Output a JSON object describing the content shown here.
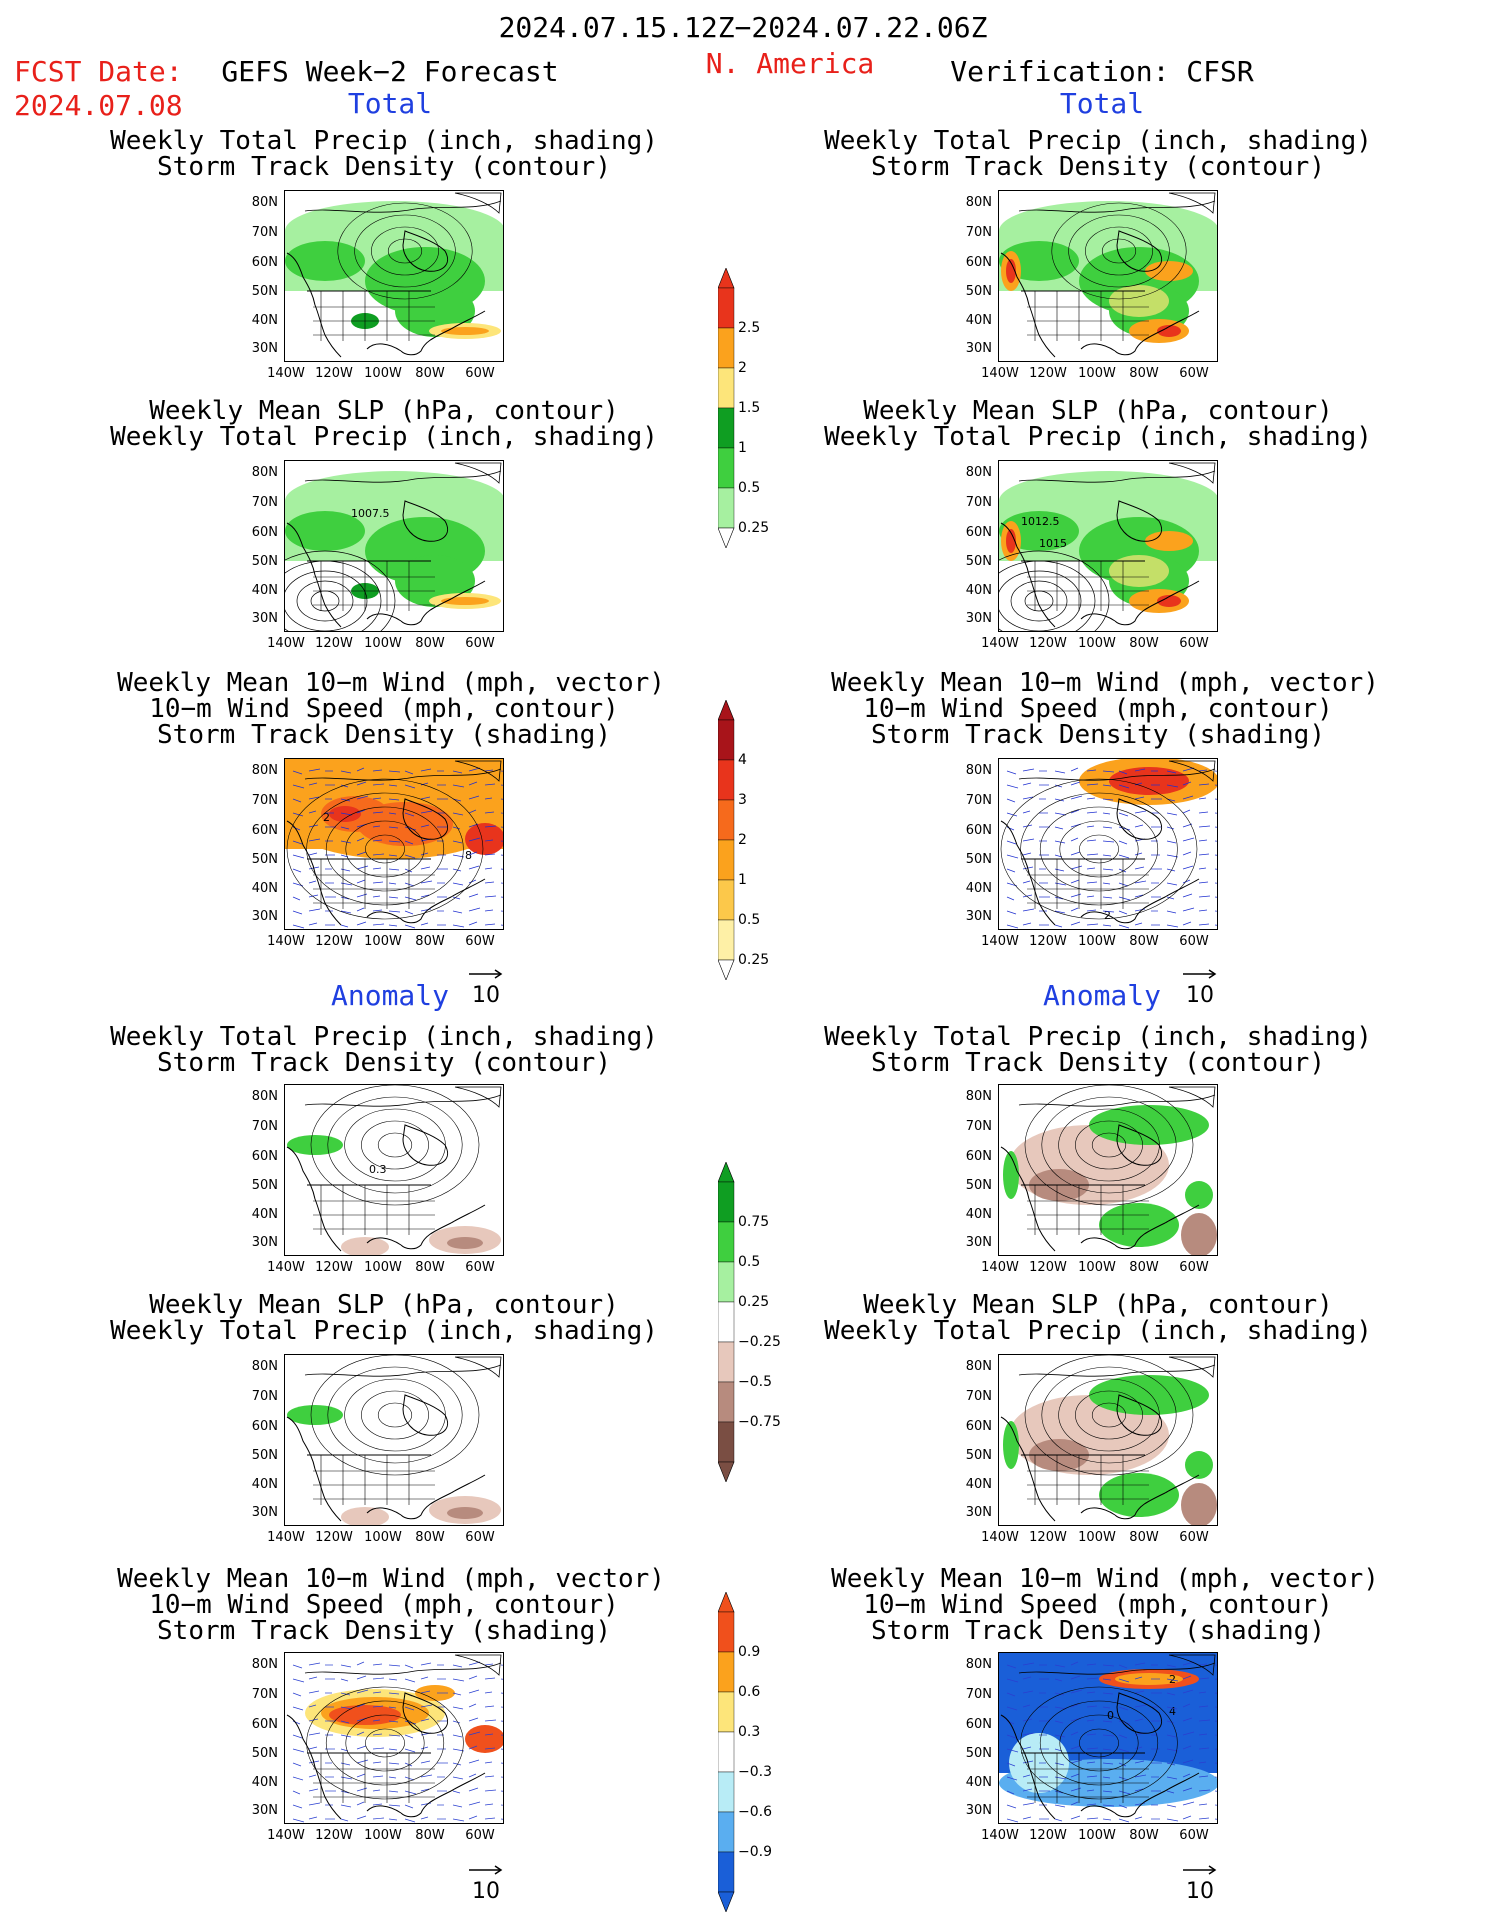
{
  "header": {
    "valid_range": "2024.07.15.12Z−2024.07.22.06Z",
    "fcst_label": "FCST Date:",
    "fcst_date": "2024.07.08",
    "left_title": "GEFS Week−2 Forecast",
    "region": "N. America",
    "right_title": "Verification: CFSR"
  },
  "sections": {
    "total": "Total",
    "anomaly": "Anomaly"
  },
  "titles": {
    "precip_storm": [
      "Weekly Total Precip (inch, shading)",
      "Storm Track Density (contour)"
    ],
    "slp_precip": [
      "Weekly Mean SLP (hPa, contour)",
      "Weekly Total Precip (inch, shading)"
    ],
    "wind_storm": [
      "Weekly Mean 10−m Wind (mph, vector)",
      "10−m Wind Speed (mph, contour)",
      "Storm Track Density (shading)"
    ]
  },
  "axes": {
    "lat_labels": [
      "80N",
      "70N",
      "60N",
      "50N",
      "40N",
      "30N"
    ],
    "lon_labels": [
      "140W",
      "120W",
      "100W",
      "80W",
      "60W"
    ]
  },
  "vector_ref": "10",
  "contour_labels": {
    "slp_fcst": "1007.5",
    "slp_obs_a": "1012.5",
    "slp_obs_b": "1015",
    "wind_fcst_a": "2",
    "wind_fcst_b": "8",
    "wind_obs": "2",
    "anom_fcst_storm": "0.3",
    "anom_obs_wind_a": "2",
    "anom_obs_wind_b": "0",
    "anom_obs_wind_c": "4"
  },
  "colorbars": {
    "precip_total": {
      "labels": [
        "2.5",
        "2",
        "1.5",
        "1",
        "0.5",
        "0.25"
      ],
      "colors": [
        "#e8341c",
        "#fba21d",
        "#fde57a",
        "#0f9e22",
        "#3fcf3f",
        "#a6f0a0"
      ]
    },
    "storm_total": {
      "labels": [
        "4",
        "3",
        "2",
        "1",
        "0.5",
        "0.25"
      ],
      "colors": [
        "#a8141a",
        "#e8341c",
        "#f66a1c",
        "#fba21d",
        "#fcc84a",
        "#fef0a6"
      ]
    },
    "precip_anom": {
      "labels": [
        "0.75",
        "0.5",
        "0.25",
        "−0.25",
        "−0.5",
        "−0.75"
      ],
      "colors": [
        "#0f9e22",
        "#3fcf3f",
        "#a6f0a0",
        "#ffffff",
        "#e7c8bc",
        "#b78b7e",
        "#7a4e43"
      ]
    },
    "storm_anom": {
      "labels": [
        "0.9",
        "0.6",
        "0.3",
        "−0.3",
        "−0.6",
        "−0.9"
      ],
      "colors": [
        "#f0501c",
        "#fba21d",
        "#fde57a",
        "#ffffff",
        "#b8ecf6",
        "#5aaef0",
        "#1a5fd8"
      ]
    }
  },
  "palette": {
    "green_light": "#a6f0a0",
    "green": "#3fcf3f",
    "green_dark": "#0f9e22",
    "yellow": "#fde57a",
    "orange": "#fba21d",
    "red": "#e8341c",
    "brown_light": "#e7c8bc",
    "brown": "#b78b7e",
    "blue_dark": "#1a5fd8",
    "blue_light": "#b8ecf6"
  }
}
